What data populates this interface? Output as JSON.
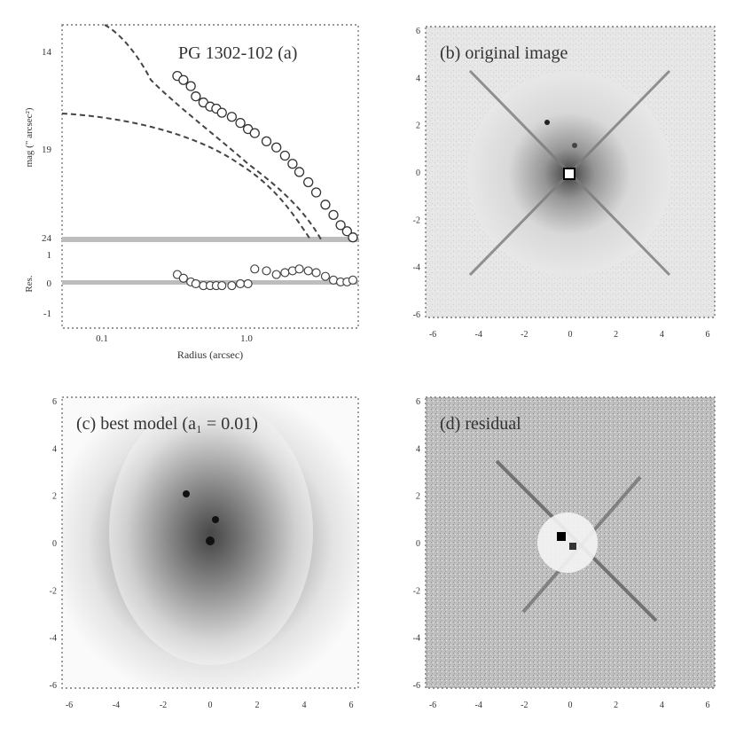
{
  "panel_a": {
    "title": "PG 1302-102 (a)",
    "ylabel_top": "mag (\" arcsec²)",
    "ylabel_bottom": "Res.",
    "xlabel": "Radius (arcsec)",
    "yticks_top": [
      "14",
      "19",
      "24"
    ],
    "yticks_bottom": [
      "1",
      "0",
      "-1"
    ],
    "xticks": [
      "0.1",
      "1.0"
    ]
  },
  "panel_b": {
    "title": "(b) original image"
  },
  "panel_c": {
    "title": "(c) best model (a₁ = 0.01)"
  },
  "panel_d": {
    "title": "(d) residual"
  },
  "image_axis_ticks": [
    "6",
    "4",
    "2",
    "0",
    "-2",
    "-4",
    "-6"
  ],
  "image_axis_xticks": [
    "-6",
    "-4",
    "-2",
    "0",
    "2",
    "4",
    "6"
  ],
  "chart_data": {
    "type": "scatter",
    "title": "PG 1302-102 (a)",
    "xlabel": "Radius (arcsec)",
    "ylabel": "mag (\" arcsec²)",
    "xscale": "log",
    "xlim": [
      0.05,
      5
    ],
    "ylim": [
      24,
      13.5
    ],
    "series": [
      {
        "name": "",
        "x": [
          0.3,
          0.33,
          0.37,
          0.4,
          0.45,
          0.5,
          0.55,
          0.6,
          0.7,
          0.8,
          0.9,
          1.0,
          1.2,
          1.4,
          1.6,
          1.8,
          2.0,
          2.3,
          2.6,
          3.0,
          3.4,
          3.8,
          4.2,
          4.6
        ],
        "y": [
          16.0,
          16.2,
          16.5,
          17.0,
          17.3,
          17.5,
          17.6,
          17.8,
          18.0,
          18.3,
          18.6,
          18.8,
          19.2,
          19.5,
          19.9,
          20.3,
          20.7,
          21.2,
          21.7,
          22.3,
          22.8,
          23.3,
          23.6,
          23.9
        ]
      }
    ],
    "residuals": {
      "x": [
        0.3,
        0.33,
        0.37,
        0.4,
        0.45,
        0.5,
        0.55,
        0.6,
        0.7,
        0.8,
        0.9,
        1.0,
        1.2,
        1.4,
        1.6,
        1.8,
        2.0,
        2.3,
        2.6,
        3.0,
        3.4,
        3.8,
        4.2,
        4.6
      ],
      "y": [
        0.25,
        0.15,
        0.05,
        0.0,
        -0.05,
        -0.05,
        -0.05,
        -0.05,
        -0.05,
        0.0,
        0.0,
        0.4,
        0.35,
        0.25,
        0.3,
        0.35,
        0.4,
        0.35,
        0.3,
        0.2,
        0.1,
        0.05,
        0.05,
        0.1
      ],
      "ylim": [
        -1.2,
        1.2
      ]
    }
  }
}
